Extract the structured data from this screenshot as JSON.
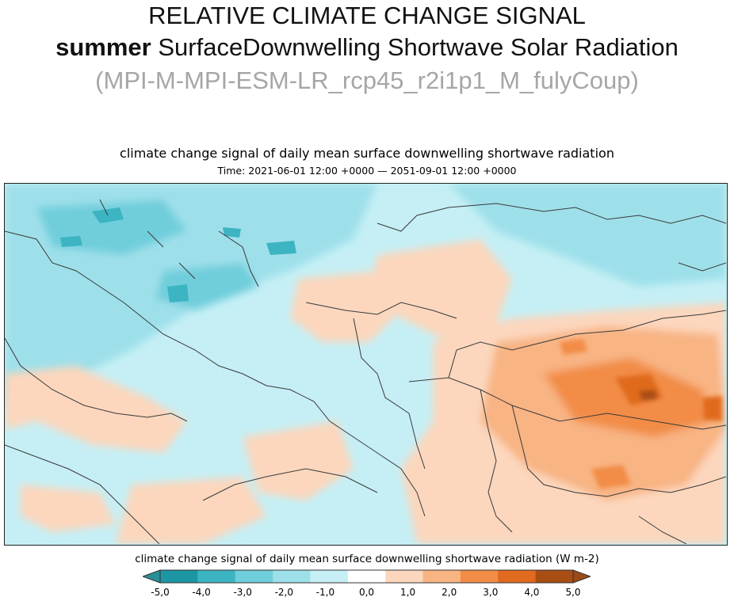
{
  "slide": {
    "title_line1": "RELATIVE CLIMATE CHANGE SIGNAL",
    "title_line2_season": "summer",
    "title_line2_rest": " SurfaceDownwelling Shortwave Solar Radiation",
    "title_line3": "(MPI-M-MPI-ESM-LR_rcp45_r2i1p1_M_fulyCoup)"
  },
  "map": {
    "title": "climate change signal of daily mean surface downwelling shortwave radiation",
    "time_range": "Time: 2021-06-01 12:00 +0000 — 2051-09-01 12:00 +0000"
  },
  "legend": {
    "label": "climate change signal of daily mean surface downwelling shortwave radiation (W m-2)",
    "ticks": [
      "-5,0",
      "-4,0",
      "-3,0",
      "-2,0",
      "-1,0",
      "0,0",
      "1,0",
      "2,0",
      "3,0",
      "4,0",
      "5,0"
    ],
    "colors": [
      "#1d96a3",
      "#3db4c2",
      "#6fcedb",
      "#9ee0ea",
      "#c5eff5",
      "#ffffff",
      "#fcd7bd",
      "#f8b483",
      "#f28c46",
      "#e06a1e",
      "#a84e14"
    ],
    "under_color": "#2a8f95",
    "over_color": "#9a4a16"
  }
}
